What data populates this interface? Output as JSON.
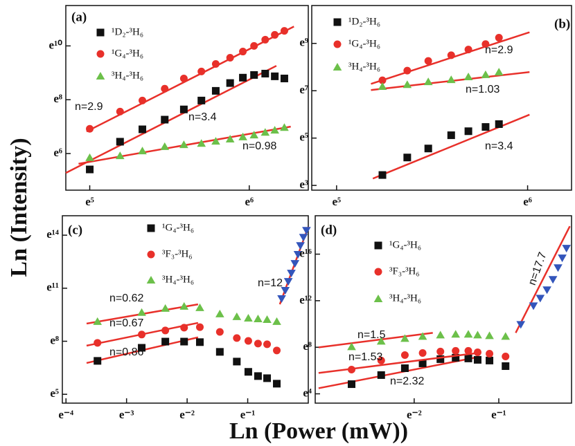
{
  "xlabel": "Ln (Power (mW))",
  "ylabel": "Ln (Intensity)",
  "chart_data": [
    {
      "type": "scatter",
      "panel": "(a)",
      "fit_color": "#e8302a",
      "xlim": [
        4.85,
        6.37
      ],
      "ylim": [
        4.64,
        11.5
      ],
      "xticks": [
        {
          "value": 5,
          "label": "e⁵"
        },
        {
          "value": 6,
          "label": "e⁶"
        }
      ],
      "yticks": [
        {
          "value": 6,
          "label": "e⁶"
        },
        {
          "value": 8,
          "label": "e⁸"
        },
        {
          "value": 10,
          "label": "e¹⁰"
        }
      ],
      "series": [
        {
          "name": "¹D₂-³H₆",
          "color": "#111111",
          "marker": "square",
          "x": [
            5.0,
            5.19,
            5.33,
            5.47,
            5.59,
            5.7,
            5.79,
            5.88,
            5.96,
            6.03,
            6.1,
            6.16,
            6.22
          ],
          "values": [
            5.41,
            6.44,
            6.9,
            7.26,
            7.64,
            7.97,
            8.33,
            8.62,
            8.82,
            8.92,
            8.97,
            8.87,
            8.79
          ],
          "fit": {
            "x": [
              4.85,
              6.17
            ],
            "values": [
              5.28,
              9.26
            ]
          }
        },
        {
          "name": "¹G₄-³H₆",
          "color": "#e8302a",
          "marker": "circle",
          "x": [
            5.0,
            5.19,
            5.33,
            5.47,
            5.59,
            5.7,
            5.79,
            5.88,
            5.96,
            6.03,
            6.1,
            6.16,
            6.22
          ],
          "values": [
            6.92,
            7.56,
            7.97,
            8.41,
            8.79,
            9.05,
            9.33,
            9.56,
            9.79,
            10.0,
            10.23,
            10.41,
            10.56
          ],
          "fit": {
            "x": [
              4.98,
              6.28
            ],
            "values": [
              6.82,
              10.72
            ]
          }
        },
        {
          "name": "³H₄-³H₆",
          "color": "#6cc04a",
          "marker": "triangle",
          "x": [
            5.0,
            5.19,
            5.33,
            5.47,
            5.59,
            5.7,
            5.79,
            5.88,
            5.96,
            6.03,
            6.1,
            6.16,
            6.22
          ],
          "values": [
            5.85,
            5.92,
            6.1,
            6.26,
            6.33,
            6.38,
            6.46,
            6.54,
            6.62,
            6.69,
            6.79,
            6.87,
            6.97
          ],
          "fit": {
            "x": [
              4.93,
              6.26
            ],
            "values": [
              5.62,
              7.0
            ]
          }
        }
      ],
      "annotations": [
        "n=2.9",
        "n=3.4",
        "n=0.98"
      ]
    },
    {
      "type": "scatter",
      "panel": "(b)",
      "fit_color": "#e8302a",
      "xlim": [
        4.87,
        6.23
      ],
      "ylim": [
        2.8,
        10.6
      ],
      "xticks": [
        {
          "value": 5,
          "label": "e⁵"
        },
        {
          "value": 6,
          "label": "e⁶"
        }
      ],
      "yticks": [
        {
          "value": 3,
          "label": "e³"
        },
        {
          "value": 5,
          "label": "e⁵"
        },
        {
          "value": 7,
          "label": "e⁷"
        },
        {
          "value": 9,
          "label": "e⁹"
        }
      ],
      "series": [
        {
          "name": "¹D₂-³H₆",
          "color": "#111111",
          "marker": "square",
          "x": [
            5.24,
            5.37,
            5.48,
            5.6,
            5.69,
            5.78,
            5.85
          ],
          "values": [
            3.44,
            4.18,
            4.56,
            5.12,
            5.29,
            5.47,
            5.59
          ],
          "fit": {
            "x": [
              5.19,
              6.01
            ],
            "values": [
              3.29,
              5.99
            ]
          }
        },
        {
          "name": "¹G₄-³H₆",
          "color": "#e8302a",
          "marker": "circle",
          "x": [
            5.24,
            5.37,
            5.48,
            5.6,
            5.69,
            5.78,
            5.85
          ],
          "values": [
            7.44,
            7.85,
            8.26,
            8.5,
            8.74,
            8.97,
            9.24
          ],
          "fit": {
            "x": [
              5.18,
              6.01
            ],
            "values": [
              7.29,
              9.47
            ]
          }
        },
        {
          "name": "³H₄-³H₆",
          "color": "#6cc04a",
          "marker": "triangle",
          "x": [
            5.24,
            5.37,
            5.48,
            5.6,
            5.69,
            5.78,
            5.85
          ],
          "values": [
            7.18,
            7.26,
            7.38,
            7.47,
            7.59,
            7.68,
            7.79
          ],
          "fit": {
            "x": [
              5.18,
              6.01
            ],
            "values": [
              7.03,
              7.79
            ]
          }
        }
      ],
      "annotations": [
        "n=2.9",
        "n=1.03",
        "n=3.4"
      ]
    },
    {
      "type": "scatter",
      "panel": "(c)",
      "fit_color": "#e8302a",
      "xlim": [
        -4.06,
        0.0
      ],
      "ylim": [
        4.5,
        15.1
      ],
      "xticks": [
        {
          "value": -4,
          "label": "e⁻⁴"
        },
        {
          "value": -3,
          "label": "e⁻³"
        },
        {
          "value": -2,
          "label": "e⁻²"
        },
        {
          "value": -1,
          "label": "e⁻¹"
        }
      ],
      "yticks": [
        {
          "value": 5,
          "label": "e⁵"
        },
        {
          "value": 8,
          "label": "e⁸"
        },
        {
          "value": 11,
          "label": "e¹¹"
        },
        {
          "value": 14,
          "label": "e¹⁴"
        }
      ],
      "series": [
        {
          "name": "¹G₄-³H₆",
          "color": "#111111",
          "marker": "square",
          "x": [
            -3.48,
            -2.75,
            -2.36,
            -2.05,
            -1.79,
            -1.46,
            -1.18,
            -0.99,
            -0.83,
            -0.68,
            -0.52
          ],
          "values": [
            6.89,
            7.63,
            7.98,
            7.98,
            7.95,
            7.4,
            6.85,
            6.27,
            6.03,
            5.91,
            5.6
          ],
          "fit": {
            "x": [
              -3.66,
              -1.82
            ],
            "values": [
              6.77,
              8.22
            ]
          }
        },
        {
          "name": "³F₃-³H₆",
          "color": "#e8302a",
          "marker": "circle",
          "x": [
            -3.48,
            -2.75,
            -2.36,
            -2.05,
            -1.79,
            -1.46,
            -1.18,
            -0.99,
            -0.83,
            -0.68,
            -0.52
          ],
          "values": [
            7.91,
            8.38,
            8.61,
            8.77,
            8.8,
            8.53,
            8.18,
            8.02,
            7.87,
            7.83,
            7.48
          ],
          "fit": {
            "x": [
              -3.66,
              -1.82
            ],
            "values": [
              7.75,
              9.04
            ]
          }
        },
        {
          "name": "³H₄-³H₆",
          "color": "#6cc04a",
          "marker": "triangle",
          "x": [
            -3.48,
            -2.75,
            -2.36,
            -2.05,
            -1.79,
            -1.46,
            -1.18,
            -0.99,
            -0.83,
            -0.68,
            -0.52
          ],
          "values": [
            9.12,
            9.63,
            9.86,
            9.98,
            9.9,
            9.55,
            9.39,
            9.31,
            9.27,
            9.23,
            9.12
          ],
          "fit": {
            "x": [
              -3.66,
              -1.82
            ],
            "values": [
              9.0,
              10.09
            ]
          }
        },
        {
          "color": "#3355bb",
          "marker": "triangle-down",
          "x": [
            -0.44,
            -0.38,
            -0.33,
            -0.28,
            -0.22,
            -0.17,
            -0.13,
            -0.08,
            -0.03
          ],
          "values": [
            10.41,
            10.88,
            11.38,
            11.85,
            12.4,
            12.91,
            13.41,
            13.88,
            14.27
          ],
          "fit": {
            "x": [
              -0.47,
              0.0
            ],
            "values": [
              10.09,
              14.47
            ]
          }
        }
      ],
      "annotations": [
        "n=0.62",
        "n=0.67",
        "n=0.86",
        "n=12"
      ]
    },
    {
      "type": "scatter",
      "panel": "(d)",
      "fit_color": "#e8302a",
      "xlim": [
        -3.17,
        -0.14
      ],
      "ylim": [
        3.2,
        19.3
      ],
      "xticks": [
        {
          "value": -2,
          "label": "e⁻²"
        },
        {
          "value": -1,
          "label": "e⁻¹"
        }
      ],
      "yticks": [
        {
          "value": 4,
          "label": "e⁴"
        },
        {
          "value": 8,
          "label": "e⁸"
        },
        {
          "value": 12,
          "label": "e¹²"
        },
        {
          "value": 16,
          "label": "e¹⁶"
        }
      ],
      "series": [
        {
          "name": "¹G₄-³H₆",
          "color": "#111111",
          "marker": "square",
          "x": [
            -2.74,
            -2.39,
            -2.11,
            -1.9,
            -1.69,
            -1.51,
            -1.36,
            -1.25,
            -1.11,
            -0.92
          ],
          "values": [
            4.83,
            5.61,
            6.2,
            6.62,
            6.98,
            7.1,
            7.04,
            6.92,
            6.86,
            6.38
          ],
          "fit": {
            "x": [
              -3.13,
              -1.25
            ],
            "values": [
              4.48,
              7.15
            ]
          }
        },
        {
          "name": "³F₃-³H₆",
          "color": "#e8302a",
          "marker": "circle",
          "x": [
            -2.74,
            -2.39,
            -2.11,
            -1.9,
            -1.69,
            -1.51,
            -1.36,
            -1.25,
            -1.11,
            -0.92
          ],
          "values": [
            6.08,
            6.86,
            7.33,
            7.51,
            7.63,
            7.69,
            7.69,
            7.57,
            7.45,
            7.21
          ],
          "fit": {
            "x": [
              -3.13,
              -1.25
            ],
            "values": [
              5.79,
              7.51
            ]
          }
        },
        {
          "name": "³H₄-³H₆",
          "color": "#6cc04a",
          "marker": "triangle",
          "x": [
            -2.74,
            -2.39,
            -2.11,
            -1.9,
            -1.69,
            -1.51,
            -1.36,
            -1.25,
            -1.11,
            -0.92
          ],
          "values": [
            8.05,
            8.52,
            8.76,
            8.94,
            9.06,
            9.12,
            9.12,
            9.06,
            9.0,
            8.94
          ],
          "fit": {
            "x": [
              -3.13,
              -1.78
            ],
            "values": [
              7.99,
              9.24
            ]
          }
        },
        {
          "color": "#3355bb",
          "marker": "triangle-down",
          "x": [
            -0.74,
            -0.59,
            -0.51,
            -0.43,
            -0.36,
            -0.3,
            -0.25,
            -0.2
          ],
          "values": [
            9.95,
            11.56,
            12.21,
            12.93,
            13.82,
            14.83,
            15.67,
            16.5
          ],
          "fit": {
            "x": [
              -0.8,
              -0.16
            ],
            "values": [
              9.24,
              18.4
            ]
          }
        }
      ],
      "annotations": [
        "n=1.5",
        "n=1.53",
        "n=2.32",
        "n=17.7"
      ]
    }
  ]
}
